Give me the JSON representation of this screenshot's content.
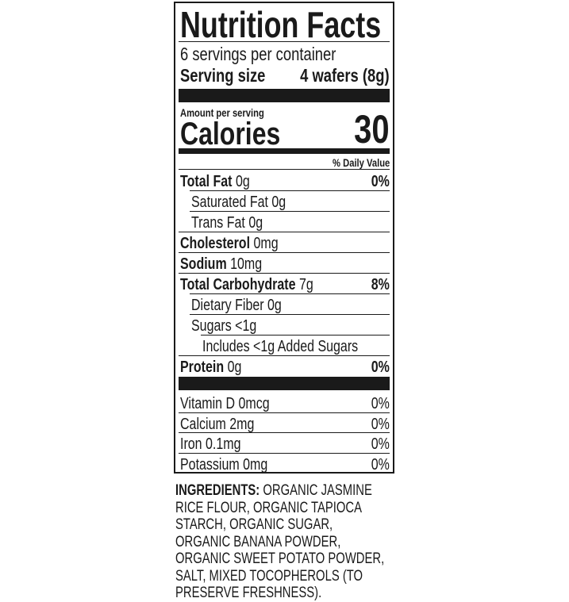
{
  "title": "Nutrition Facts",
  "servings_per_container": "6 servings per container",
  "serving_size": {
    "label": "Serving size",
    "value": "4 wafers (8g)"
  },
  "amount_per_serving": "Amount per serving",
  "calories": {
    "label": "Calories",
    "value": "30"
  },
  "daily_value_header": "% Daily Value",
  "nutrients": [
    {
      "name": "Total Fat",
      "amount": "0g",
      "dv": "0%"
    },
    {
      "name": "Saturated Fat 0g",
      "amount": "",
      "dv": ""
    },
    {
      "name": "Trans Fat 0g",
      "amount": "",
      "dv": ""
    },
    {
      "name": "Cholesterol",
      "amount": "0mg",
      "dv": ""
    },
    {
      "name": "Sodium",
      "amount": "10mg",
      "dv": ""
    },
    {
      "name": "Total Carbohydrate",
      "amount": "7g",
      "dv": "8%"
    },
    {
      "name": "Dietary Fiber 0g",
      "amount": "",
      "dv": ""
    },
    {
      "name": "Sugars <1g",
      "amount": "",
      "dv": ""
    },
    {
      "name": "Includes <1g Added Sugars",
      "amount": "",
      "dv": ""
    },
    {
      "name": "Protein",
      "amount": "0g",
      "dv": "0%"
    }
  ],
  "vitamins": [
    {
      "name": "Vitamin D 0mcg",
      "dv": "0%"
    },
    {
      "name": "Calcium 2mg",
      "dv": "0%"
    },
    {
      "name": "Iron 0.1mg",
      "dv": "0%"
    },
    {
      "name": "Potassium 0mg",
      "dv": "0%"
    }
  ],
  "ingredients": {
    "label": "INGREDIENTS:",
    "text": "ORGANIC JASMINE RICE FLOUR, ORGANIC TAPIOCA STARCH, ORGANIC SUGAR, ORGANIC BANANA POWDER, ORGANIC SWEET POTATO POWDER, SALT, MIXED TOCOPHEROLS (TO PRESERVE FRESHNESS)."
  }
}
